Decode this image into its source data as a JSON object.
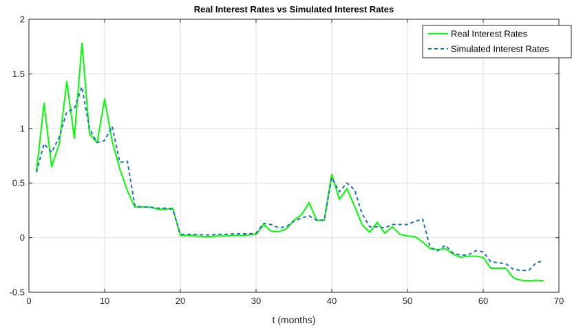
{
  "chart_data": {
    "type": "line",
    "title": "Real Interest Rates vs Simulated Interest Rates",
    "xlabel": "t (months)",
    "ylabel": "",
    "xlim": [
      0,
      70
    ],
    "ylim": [
      -0.5,
      2
    ],
    "xticks": [
      0,
      10,
      20,
      30,
      40,
      50,
      60,
      70
    ],
    "yticks": [
      -0.5,
      0,
      0.5,
      1,
      1.5,
      2
    ],
    "xtick_labels": [
      "0",
      "10",
      "20",
      "30",
      "40",
      "50",
      "60",
      "70"
    ],
    "ytick_labels": [
      "-0.5",
      "0",
      "0.5",
      "1",
      "1.5",
      "2"
    ],
    "grid": true,
    "legend_position": "top-right",
    "x": [
      1,
      2,
      3,
      4,
      5,
      6,
      7,
      8,
      9,
      10,
      11,
      12,
      13,
      14,
      15,
      16,
      17,
      18,
      19,
      20,
      21,
      22,
      23,
      24,
      25,
      26,
      27,
      28,
      29,
      30,
      31,
      32,
      33,
      34,
      35,
      36,
      37,
      38,
      39,
      40,
      41,
      42,
      43,
      44,
      45,
      46,
      47,
      48,
      49,
      50,
      51,
      52,
      53,
      54,
      55,
      56,
      57,
      58,
      59,
      60,
      61,
      62,
      63,
      64,
      65,
      66,
      67,
      68
    ],
    "series": [
      {
        "name": "Real Interest Rates",
        "color": "#00ff00",
        "style": "solid",
        "values": [
          0.61,
          1.23,
          0.65,
          0.86,
          1.43,
          0.91,
          1.78,
          0.95,
          0.87,
          1.27,
          0.88,
          0.63,
          0.43,
          0.28,
          0.28,
          0.28,
          0.26,
          0.26,
          0.27,
          0.02,
          0.02,
          0.015,
          0.01,
          0.01,
          0.015,
          0.015,
          0.02,
          0.02,
          0.025,
          0.03,
          0.12,
          0.06,
          0.055,
          0.08,
          0.16,
          0.21,
          0.32,
          0.16,
          0.16,
          0.58,
          0.35,
          0.45,
          0.29,
          0.12,
          0.05,
          0.14,
          0.04,
          0.1,
          0.03,
          0.015,
          0.01,
          -0.04,
          -0.1,
          -0.11,
          -0.1,
          -0.15,
          -0.18,
          -0.17,
          -0.17,
          -0.18,
          -0.28,
          -0.28,
          -0.28,
          -0.37,
          -0.39,
          -0.395,
          -0.39,
          -0.395
        ]
      },
      {
        "name": "Simulated Interest Rates",
        "color": "#1f6fb4",
        "style": "dashed",
        "values": [
          0.6,
          0.86,
          0.78,
          0.92,
          1.15,
          1.18,
          1.38,
          1.0,
          0.87,
          0.89,
          1.02,
          0.69,
          0.7,
          0.29,
          0.28,
          0.28,
          0.27,
          0.27,
          0.26,
          0.03,
          0.03,
          0.03,
          0.025,
          0.025,
          0.03,
          0.03,
          0.035,
          0.035,
          0.035,
          0.04,
          0.13,
          0.12,
          0.09,
          0.1,
          0.15,
          0.18,
          0.2,
          0.16,
          0.16,
          0.55,
          0.42,
          0.5,
          0.44,
          0.22,
          0.1,
          0.1,
          0.09,
          0.12,
          0.12,
          0.12,
          0.15,
          0.17,
          -0.09,
          -0.12,
          -0.07,
          -0.14,
          -0.16,
          -0.16,
          -0.12,
          -0.13,
          -0.22,
          -0.23,
          -0.24,
          -0.29,
          -0.3,
          -0.3,
          -0.23,
          -0.21
        ]
      }
    ]
  }
}
